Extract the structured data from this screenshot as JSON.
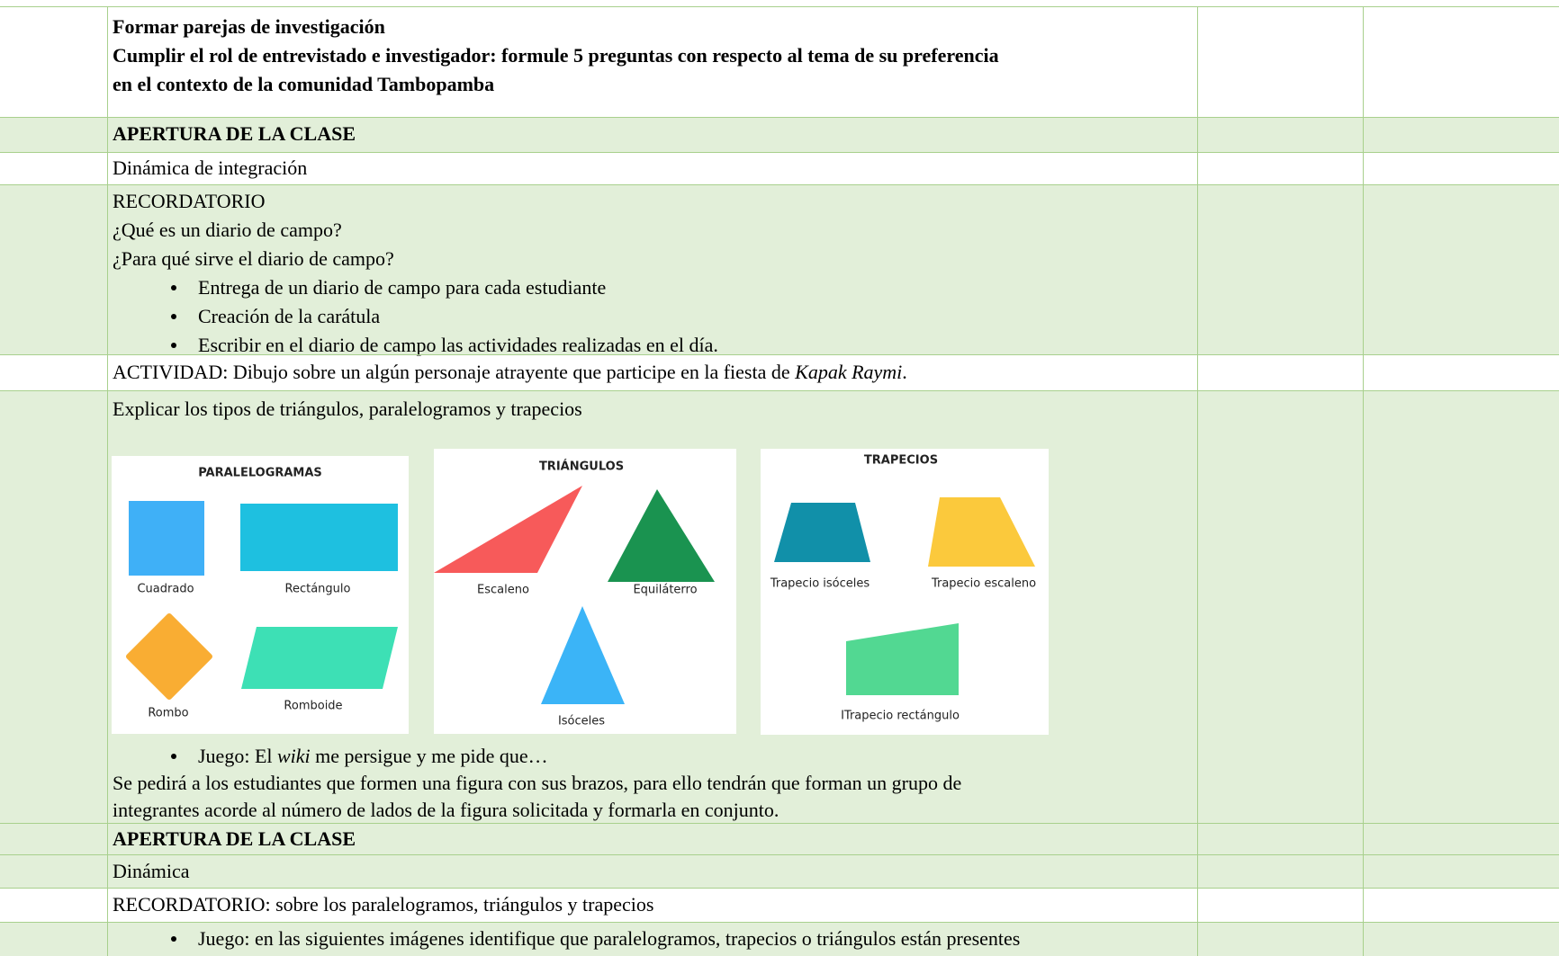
{
  "table": {
    "rows": [
      {
        "lines": [
          "Formar parejas de investigación",
          "Cumplir el rol de entrevistado e investigador: formule 5 preguntas con respecto al tema de su preferencia",
          "en el contexto de la comunidad Tambopamba"
        ]
      },
      {
        "lines": [
          "APERTURA DE  LA CLASE"
        ]
      },
      {
        "lines": [
          "Dinámica de integración"
        ]
      },
      {
        "lines": [
          "RECORDATORIO",
          "¿Qué es un diario de campo?",
          "¿Para qué sirve el diario de campo?"
        ],
        "bullets": [
          "Entrega de un diario de campo para cada estudiante",
          "Creación de la carátula",
          "Escribir en el diario de campo las actividades realizadas en el día."
        ]
      },
      {
        "segments": [
          "ACTIVIDAD: Dibujo sobre un algún personaje atrayente que participe en la fiesta de ",
          "Kapak Raymi",
          "."
        ]
      },
      {
        "lines": [
          "Explicar los tipos de triángulos, paralelogramos y trapecios"
        ],
        "figures": [
          {
            "title": "PARALELOGRAMAS",
            "labels": [
              "Cuadrado",
              "Rectángulo",
              "Rombo",
              "Romboide"
            ]
          },
          {
            "title": "TRIÁNGULOS",
            "labels": [
              "Escaleno",
              "Equiláterro",
              "Isóceles"
            ]
          },
          {
            "title": "TRAPECIOS",
            "labels": [
              "Trapecio isóceles",
              "Trapecio escaleno",
              "ITrapecio rectángulo"
            ]
          }
        ],
        "bullet_segments": [
          "Juego: El ",
          "wiki",
          " me persigue y me pide que…"
        ],
        "after": [
          "Se pedirá a los estudiantes que formen una figura con sus brazos, para ello tendrán que forman un grupo de",
          "integrantes acorde al número de lados de la figura solicitada y formarla en conjunto."
        ]
      },
      {
        "lines": [
          "APERTURA DE  LA CLASE"
        ]
      },
      {
        "lines": [
          "Dinámica"
        ]
      },
      {
        "lines": [
          "RECORDATORIO: sobre los paralelogramos, triángulos y trapecios"
        ]
      },
      {
        "bullets": [
          "Juego: en las siguientes imágenes identifique que paralelogramos, trapecios o triángulos están presentes"
        ]
      }
    ]
  }
}
